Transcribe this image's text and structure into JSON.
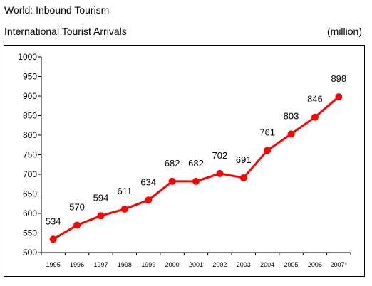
{
  "title": "World: Inbound Tourism",
  "subtitle": "International Tourist Arrivals",
  "unit_label": "(million)",
  "chart_data": {
    "type": "line",
    "categories": [
      "1995",
      "1996",
      "1997",
      "1998",
      "1999",
      "2000",
      "2001",
      "2002",
      "2003",
      "2004",
      "2005",
      "2006",
      "2007*"
    ],
    "series": [
      {
        "values": [
          534,
          570,
          594,
          611,
          634,
          682,
          682,
          702,
          691,
          761,
          803,
          846,
          898
        ],
        "color": "#ff0000"
      }
    ],
    "data_labels": [
      "534",
      "570",
      "594",
      "611",
      "634",
      "682",
      "682",
      "702",
      "691",
      "761",
      "803",
      "846",
      "898"
    ],
    "ylim": [
      500,
      1000
    ],
    "yticks": [
      500,
      550,
      600,
      650,
      700,
      750,
      800,
      850,
      900,
      950,
      1000
    ],
    "grid": false,
    "legend": "none"
  }
}
